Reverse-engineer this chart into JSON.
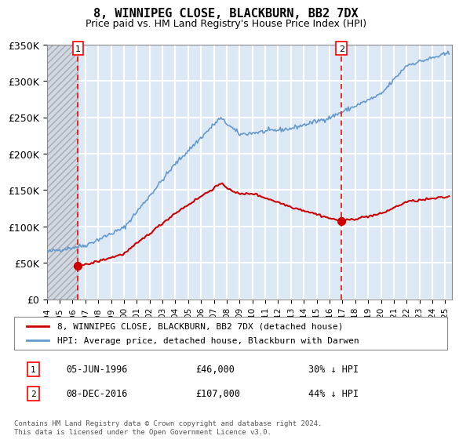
{
  "title": "8, WINNIPEG CLOSE, BLACKBURN, BB2 7DX",
  "subtitle": "Price paid vs. HM Land Registry's House Price Index (HPI)",
  "ylabel": "",
  "xlabel": "",
  "ylim": [
    0,
    350000
  ],
  "yticks": [
    0,
    50000,
    100000,
    150000,
    200000,
    250000,
    300000,
    350000
  ],
  "ytick_labels": [
    "£0",
    "£50K",
    "£100K",
    "£150K",
    "£200K",
    "£250K",
    "£300K",
    "£350K"
  ],
  "xlim_start": 1994.0,
  "xlim_end": 2025.5,
  "plot_bg_color": "#dce9f5",
  "hatch_color": "#c0c0c0",
  "grid_color": "#ffffff",
  "red_line_color": "#cc0000",
  "blue_line_color": "#6699cc",
  "sale1_date_num": 1996.43,
  "sale1_price": 46000,
  "sale2_date_num": 2016.93,
  "sale2_price": 107000,
  "legend_label1": "8, WINNIPEG CLOSE, BLACKBURN, BB2 7DX (detached house)",
  "legend_label2": "HPI: Average price, detached house, Blackburn with Darwen",
  "annotation1_label": "05-JUN-1996",
  "annotation1_price": "£46,000",
  "annotation1_hpi": "30% ↓ HPI",
  "annotation2_label": "08-DEC-2016",
  "annotation2_price": "£107,000",
  "annotation2_hpi": "44% ↓ HPI",
  "footer": "Contains HM Land Registry data © Crown copyright and database right 2024.\nThis data is licensed under the Open Government Licence v3.0."
}
